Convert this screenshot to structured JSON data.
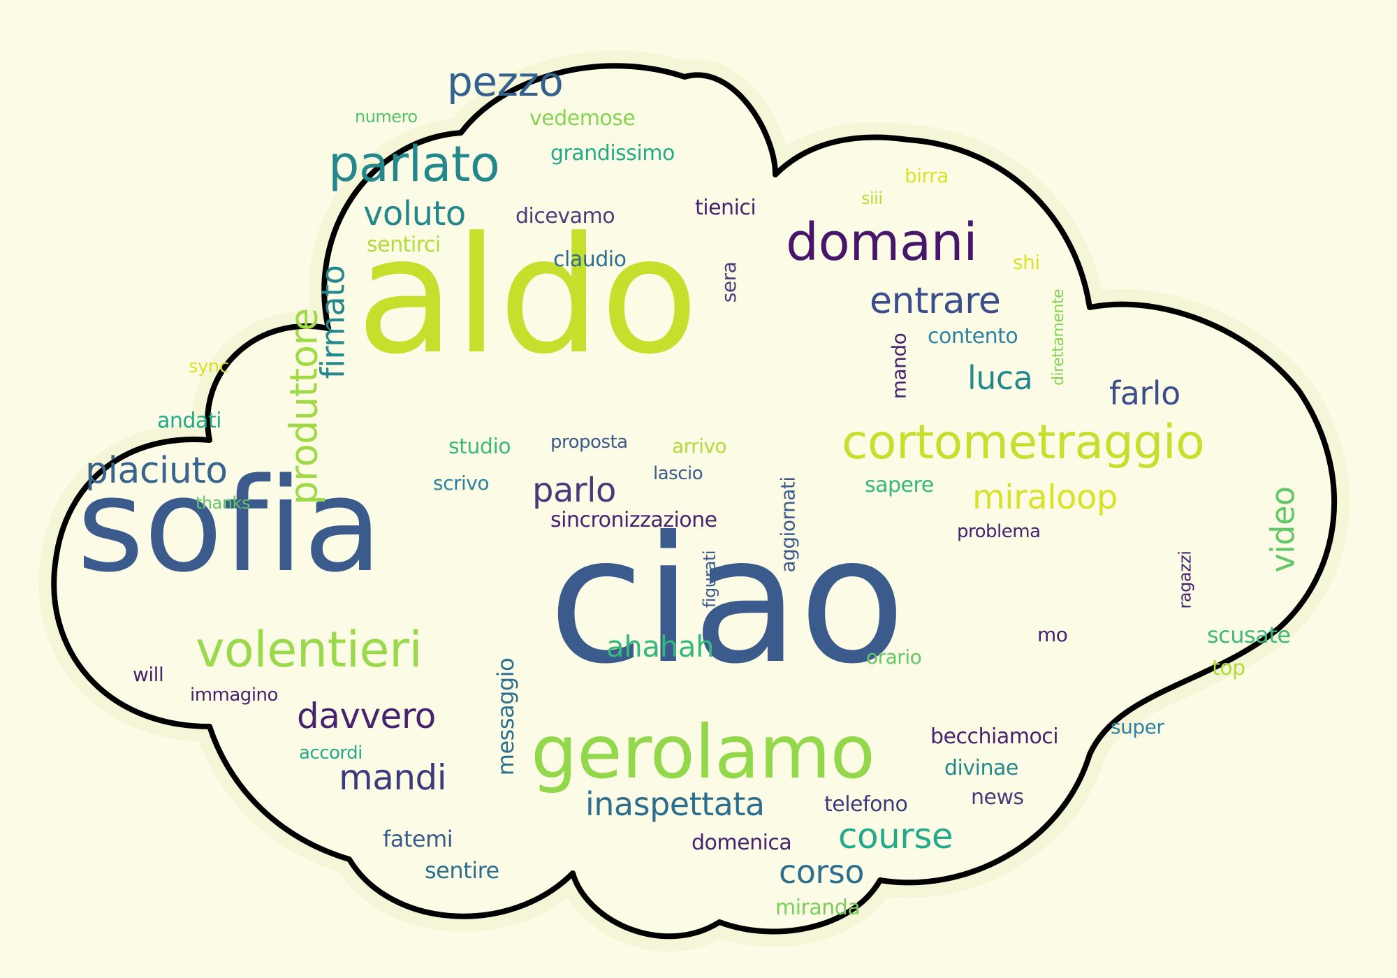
{
  "palette": {
    "background": "#fcfce6",
    "cloud_fill": "#fcfce6",
    "cloud_outline": "#000000",
    "outer_glow": "#f5f5d8"
  },
  "words": [
    {
      "text": "ciao",
      "color": "#3b5b8c"
    },
    {
      "text": "sofia",
      "color": "#3b5b8c"
    },
    {
      "text": "aldo",
      "color": "#c6de2c"
    },
    {
      "text": "gerolamo",
      "color": "#93d74b"
    },
    {
      "text": "cortometraggio",
      "color": "#c6de2c"
    },
    {
      "text": "domani",
      "color": "#47166b"
    },
    {
      "text": "parlato",
      "color": "#23878b"
    },
    {
      "text": "volentieri",
      "color": "#9ad84c"
    },
    {
      "text": "pezzo",
      "color": "#33608d"
    },
    {
      "text": "voluto",
      "color": "#23878b"
    },
    {
      "text": "entrare",
      "color": "#3b4d8b"
    },
    {
      "text": "produttore",
      "color": "#a0d946"
    },
    {
      "text": "firmato",
      "color": "#23878b"
    },
    {
      "text": "piaciuto",
      "color": "#3a638d"
    },
    {
      "text": "miraloop",
      "color": "#d8e22a"
    },
    {
      "text": "video",
      "color": "#62c766"
    },
    {
      "text": "luca",
      "color": "#23878b"
    },
    {
      "text": "farlo",
      "color": "#3b4d8b"
    },
    {
      "text": "davvero",
      "color": "#46226f"
    },
    {
      "text": "mandi",
      "color": "#3b3a7a"
    },
    {
      "text": "inaspettata",
      "color": "#2c6e8d"
    },
    {
      "text": "course",
      "color": "#24a98a"
    },
    {
      "text": "corso",
      "color": "#2c6e8d"
    },
    {
      "text": "ahahah",
      "color": "#36b77b"
    },
    {
      "text": "parlo",
      "color": "#453a7c"
    },
    {
      "text": "grandissimo",
      "color": "#24a98a"
    },
    {
      "text": "vedemose",
      "color": "#86d354"
    },
    {
      "text": "numero",
      "color": "#54c26a"
    },
    {
      "text": "dicevamo",
      "color": "#4b3a7c"
    },
    {
      "text": "claudio",
      "color": "#2d6e8e"
    },
    {
      "text": "tienici",
      "color": "#46226f"
    },
    {
      "text": "sentirci",
      "color": "#b0db3a"
    },
    {
      "text": "sera",
      "color": "#4b3a7c"
    },
    {
      "text": "birra",
      "color": "#d8e22a"
    },
    {
      "text": "siii",
      "color": "#b7dc36"
    },
    {
      "text": "shi",
      "color": "#d8e22a"
    },
    {
      "text": "contento",
      "color": "#2c82a0"
    },
    {
      "text": "mando",
      "color": "#46226f"
    },
    {
      "text": "direttamente",
      "color": "#86d354"
    },
    {
      "text": "sync",
      "color": "#d8e22a"
    },
    {
      "text": "andati",
      "color": "#24a98a"
    },
    {
      "text": "studio",
      "color": "#3fb879"
    },
    {
      "text": "proposta",
      "color": "#3b5b8c"
    },
    {
      "text": "arrivo",
      "color": "#b0db3a"
    },
    {
      "text": "scrivo",
      "color": "#2c82a0"
    },
    {
      "text": "lascio",
      "color": "#3b5b8c"
    },
    {
      "text": "aggiornati",
      "color": "#3b5b8c"
    },
    {
      "text": "sapere",
      "color": "#36b77b"
    },
    {
      "text": "thanks",
      "color": "#62c766"
    },
    {
      "text": "sincronizzazione",
      "color": "#46226f"
    },
    {
      "text": "figurati",
      "color": "#3b5b8c"
    },
    {
      "text": "problema",
      "color": "#46226f"
    },
    {
      "text": "ragazzi",
      "color": "#46226f"
    },
    {
      "text": "scusate",
      "color": "#3fb879"
    },
    {
      "text": "top",
      "color": "#b0db3a"
    },
    {
      "text": "mo",
      "color": "#46226f"
    },
    {
      "text": "orario",
      "color": "#62c766"
    },
    {
      "text": "will",
      "color": "#46226f"
    },
    {
      "text": "immagino",
      "color": "#46226f"
    },
    {
      "text": "messaggio",
      "color": "#2c6e8d"
    },
    {
      "text": "accordi",
      "color": "#24a98a"
    },
    {
      "text": "becchiamoci",
      "color": "#46226f"
    },
    {
      "text": "super",
      "color": "#2c82a0"
    },
    {
      "text": "divinae",
      "color": "#23878b"
    },
    {
      "text": "news",
      "color": "#453a7c"
    },
    {
      "text": "telefono",
      "color": "#3b3a7a"
    },
    {
      "text": "domenica",
      "color": "#46226f"
    },
    {
      "text": "fatemi",
      "color": "#3b5b8c"
    },
    {
      "text": "sentire",
      "color": "#2c6e8d"
    },
    {
      "text": "miranda",
      "color": "#7acf59"
    }
  ]
}
